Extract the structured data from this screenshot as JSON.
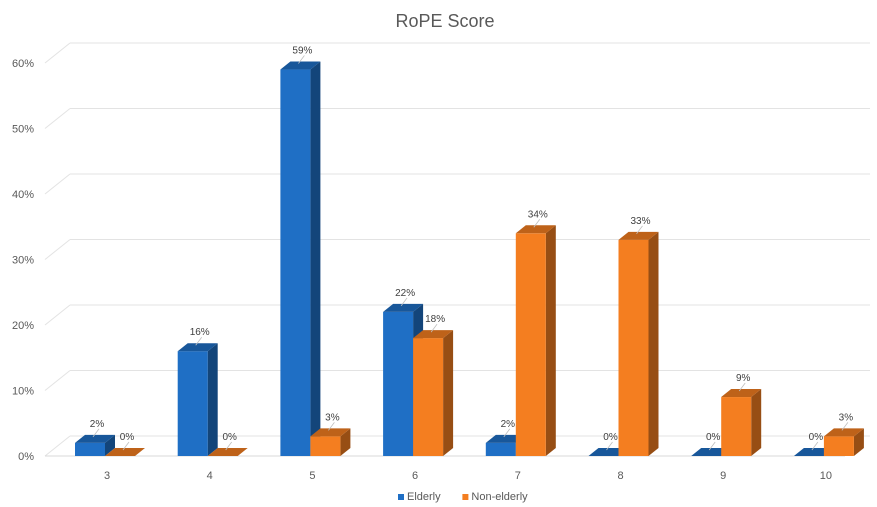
{
  "chart_data": {
    "type": "bar",
    "title": "RoPE Score",
    "categories": [
      "3",
      "4",
      "5",
      "6",
      "7",
      "8",
      "9",
      "10"
    ],
    "series": [
      {
        "name": "Elderly",
        "values": [
          2,
          16,
          59,
          22,
          2,
          0,
          0,
          0
        ],
        "labels": [
          "2%",
          "16%",
          "59%",
          "22%",
          "2%",
          "0%",
          "0%",
          "0%"
        ]
      },
      {
        "name": "Non-elderly",
        "values": [
          0,
          0,
          3,
          18,
          34,
          33,
          9,
          3
        ],
        "labels": [
          "0%",
          "0%",
          "3%",
          "18%",
          "34%",
          "33%",
          "9%",
          "3%"
        ]
      }
    ],
    "ylim": [
      0,
      60
    ],
    "yticks": [
      "0%",
      "10%",
      "20%",
      "30%",
      "40%",
      "50%",
      "60%"
    ],
    "grid": true,
    "legend": "bottom",
    "colors": {
      "Elderly": "#1f6fc5",
      "Non-elderly": "#f47e20"
    }
  }
}
